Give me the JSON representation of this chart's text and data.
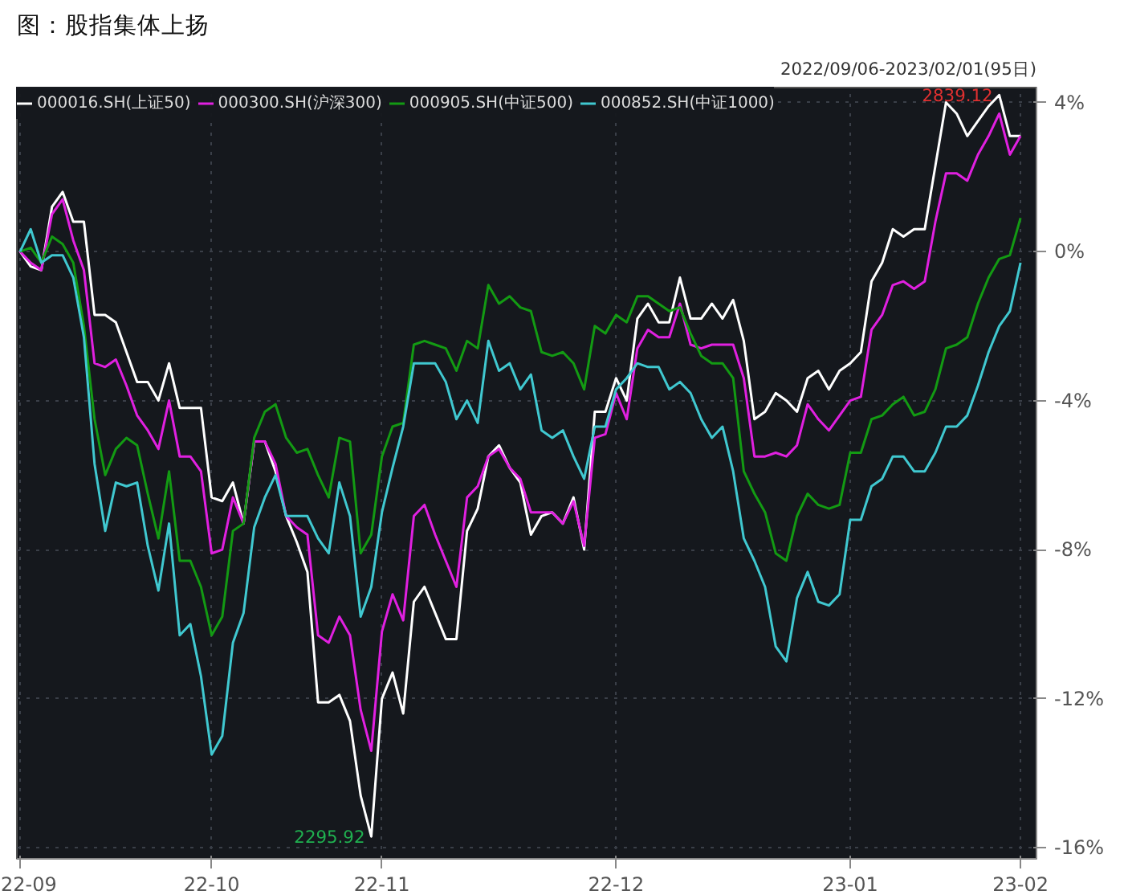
{
  "chart_data": {
    "type": "line",
    "title": "图：股指集体上扬",
    "annotations": [
      "2839.12",
      "2295.92",
      "2022/09/06-2023/02/01(95日)"
    ],
    "categories": [
      "22-09",
      null,
      null,
      null,
      null,
      null,
      null,
      null,
      null,
      null,
      null,
      null,
      null,
      null,
      null,
      null,
      null,
      null,
      "22-10",
      null,
      null,
      null,
      null,
      null,
      null,
      null,
      null,
      null,
      null,
      null,
      null,
      null,
      null,
      null,
      "22-11",
      null,
      null,
      null,
      null,
      null,
      null,
      null,
      null,
      null,
      null,
      null,
      null,
      null,
      null,
      null,
      null,
      null,
      null,
      null,
      null,
      null,
      "22-12",
      null,
      null,
      null,
      null,
      null,
      null,
      null,
      null,
      null,
      null,
      null,
      null,
      null,
      null,
      null,
      null,
      null,
      null,
      null,
      null,
      null,
      "23-01",
      null,
      null,
      null,
      null,
      null,
      null,
      null,
      null,
      null,
      null,
      null,
      null,
      null,
      null,
      null,
      "23-02"
    ],
    "ylim": [
      -16.3,
      4.4
    ],
    "yticks": [
      {
        "value": 4,
        "label": "4%"
      },
      {
        "value": 0,
        "label": "0%"
      },
      {
        "value": -4,
        "label": "-4%"
      },
      {
        "value": -8,
        "label": "-8%"
      },
      {
        "value": -12,
        "label": "-12%"
      },
      {
        "value": -16,
        "label": "-16%"
      }
    ],
    "grid": true,
    "legend": "top",
    "line_style": "solid",
    "marker": "none",
    "series": [
      {
        "name": "000016.SH(上证50)",
        "color": "#ffffff",
        "values": [
          0,
          -0.4,
          -0.5,
          1.2,
          1.6,
          0.8,
          0.8,
          -1.7,
          -1.7,
          -1.9,
          -2.7,
          -3.5,
          -3.5,
          -4.0,
          -3.0,
          -4.2,
          -4.2,
          -4.2,
          -6.6,
          -6.7,
          -6.2,
          -7.3,
          -5.1,
          -5.1,
          -5.9,
          -7.1,
          -7.8,
          -8.6,
          -12.1,
          -12.1,
          -11.9,
          -12.6,
          -14.6,
          -15.7,
          -12.0,
          -11.3,
          -12.4,
          -9.4,
          -9.0,
          -9.7,
          -10.4,
          -10.4,
          -7.5,
          -6.9,
          -5.5,
          -5.2,
          -5.8,
          -6.2,
          -7.6,
          -7.1,
          -7.0,
          -7.3,
          -6.6,
          -8.0,
          -4.3,
          -4.3,
          -3.4,
          -4.0,
          -1.8,
          -1.4,
          -1.9,
          -1.9,
          -0.7,
          -1.8,
          -1.8,
          -1.4,
          -1.8,
          -1.3,
          -2.4,
          -4.5,
          -4.3,
          -3.8,
          -4.0,
          -4.3,
          -3.4,
          -3.2,
          -3.7,
          -3.2,
          -3.0,
          -2.7,
          -0.8,
          -0.3,
          0.6,
          0.4,
          0.6,
          0.6,
          2.3,
          4.0,
          3.7,
          3.1,
          3.5,
          3.9,
          4.2,
          3.1,
          3.1
        ]
      },
      {
        "name": "000300.SH(沪深300)",
        "color": "#e020e0",
        "values": [
          0,
          -0.3,
          -0.5,
          1.0,
          1.4,
          0.3,
          -0.5,
          -3.0,
          -3.1,
          -2.9,
          -3.6,
          -4.4,
          -4.8,
          -5.3,
          -4.0,
          -5.5,
          -5.5,
          -5.9,
          -8.1,
          -8.0,
          -6.6,
          -7.3,
          -5.1,
          -5.1,
          -5.7,
          -7.1,
          -7.4,
          -7.6,
          -10.3,
          -10.5,
          -9.8,
          -10.3,
          -12.3,
          -13.4,
          -10.2,
          -9.2,
          -9.9,
          -7.1,
          -6.8,
          -7.6,
          -8.3,
          -9.0,
          -6.6,
          -6.3,
          -5.5,
          -5.3,
          -5.8,
          -6.1,
          -7.0,
          -7.0,
          -7.0,
          -7.3,
          -6.7,
          -7.9,
          -5.0,
          -4.9,
          -3.8,
          -4.5,
          -2.6,
          -2.1,
          -2.3,
          -2.3,
          -1.4,
          -2.5,
          -2.6,
          -2.5,
          -2.5,
          -2.5,
          -3.4,
          -5.5,
          -5.5,
          -5.4,
          -5.5,
          -5.2,
          -4.1,
          -4.5,
          -4.8,
          -4.4,
          -4.0,
          -3.9,
          -2.1,
          -1.7,
          -0.9,
          -0.8,
          -1.0,
          -0.8,
          0.8,
          2.1,
          2.1,
          1.9,
          2.6,
          3.1,
          3.7,
          2.6,
          3.1
        ]
      },
      {
        "name": "000905.SH(中证500)",
        "color": "#139a13",
        "values": [
          0,
          0.1,
          -0.3,
          0.4,
          0.2,
          -0.3,
          -2.0,
          -4.5,
          -6.0,
          -5.3,
          -5.0,
          -5.2,
          -6.5,
          -7.7,
          -5.9,
          -8.3,
          -8.3,
          -9.0,
          -10.3,
          -9.8,
          -7.5,
          -7.3,
          -5.0,
          -4.3,
          -4.1,
          -5.0,
          -5.4,
          -5.3,
          -6.0,
          -6.6,
          -5.0,
          -5.1,
          -8.1,
          -7.6,
          -5.5,
          -4.7,
          -4.6,
          -2.5,
          -2.4,
          -2.5,
          -2.6,
          -3.2,
          -2.4,
          -2.6,
          -0.9,
          -1.4,
          -1.2,
          -1.5,
          -1.6,
          -2.7,
          -2.8,
          -2.7,
          -3.0,
          -3.7,
          -2.0,
          -2.2,
          -1.7,
          -1.9,
          -1.2,
          -1.2,
          -1.4,
          -1.6,
          -1.5,
          -2.2,
          -2.8,
          -3.0,
          -3.0,
          -3.4,
          -5.9,
          -6.5,
          -7.0,
          -8.1,
          -8.3,
          -7.1,
          -6.5,
          -6.8,
          -6.9,
          -6.8,
          -5.4,
          -5.4,
          -4.5,
          -4.4,
          -4.1,
          -3.9,
          -4.4,
          -4.3,
          -3.7,
          -2.6,
          -2.5,
          -2.3,
          -1.4,
          -0.7,
          -0.2,
          -0.1,
          0.9
        ]
      },
      {
        "name": "000852.SH(中证1000)",
        "color": "#40c8d0",
        "values": [
          0,
          0.6,
          -0.3,
          -0.1,
          -0.1,
          -0.7,
          -2.3,
          -5.7,
          -7.5,
          -6.2,
          -6.3,
          -6.2,
          -7.9,
          -9.1,
          -7.3,
          -10.3,
          -10.0,
          -11.4,
          -13.5,
          -13.0,
          -10.5,
          -9.7,
          -7.4,
          -6.6,
          -6.0,
          -7.1,
          -7.1,
          -7.1,
          -7.7,
          -8.1,
          -6.2,
          -7.1,
          -9.8,
          -9.0,
          -7.0,
          -5.8,
          -4.7,
          -3.0,
          -3.0,
          -3.0,
          -3.5,
          -4.5,
          -4.0,
          -4.6,
          -2.4,
          -3.2,
          -3.0,
          -3.7,
          -3.3,
          -4.8,
          -5.0,
          -4.8,
          -5.5,
          -6.1,
          -4.7,
          -4.7,
          -3.7,
          -3.4,
          -3.0,
          -3.1,
          -3.1,
          -3.7,
          -3.5,
          -3.8,
          -4.5,
          -5.0,
          -4.7,
          -5.9,
          -7.7,
          -8.3,
          -9.0,
          -10.6,
          -11.0,
          -9.3,
          -8.6,
          -9.4,
          -9.5,
          -9.2,
          -7.2,
          -7.2,
          -6.3,
          -6.1,
          -5.5,
          -5.5,
          -5.9,
          -5.9,
          -5.4,
          -4.7,
          -4.7,
          -4.4,
          -3.6,
          -2.7,
          -2.0,
          -1.6,
          -0.3
        ]
      }
    ]
  }
}
